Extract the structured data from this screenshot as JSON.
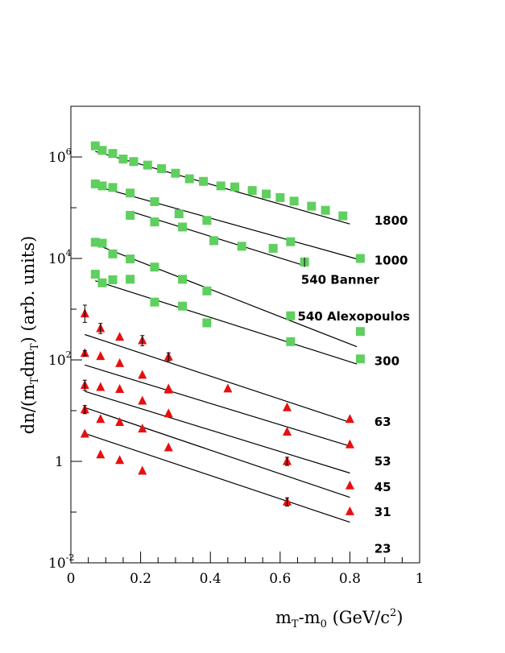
{
  "chart_data": {
    "type": "scatter",
    "title": "",
    "xlabel": {
      "main": "m",
      "sub1": "T",
      "mid": "-m",
      "sub2": "0",
      "unit": " (GeV/c",
      "sup": "2",
      "close": ")"
    },
    "ylabel": {
      "pre": "dn/(m",
      "sub1": "T",
      "mid": "dm",
      "sub2": "T",
      "post": ") (arb. units)"
    },
    "xlim": [
      0,
      1
    ],
    "ylim_log10": [
      -2,
      7
    ],
    "y_scale": "log",
    "x_ticks": [
      0,
      0.2,
      0.4,
      0.6,
      0.8,
      1
    ],
    "x_tick_labels": [
      "0",
      "0.2",
      "0.4",
      "0.6",
      "0.8",
      "1"
    ],
    "y_tick_labels": [
      {
        "log10": -2,
        "base": "10",
        "exp": "-2"
      },
      {
        "log10": 0,
        "base": "1",
        "exp": ""
      },
      {
        "log10": 2,
        "base": "10",
        "exp": "2"
      },
      {
        "log10": 4,
        "base": "10",
        "exp": "4"
      },
      {
        "log10": 6,
        "base": "10",
        "exp": "6"
      }
    ],
    "colors": {
      "square": "#5fcf5f",
      "triangle": "#e51010",
      "line": "#000000"
    },
    "series": [
      {
        "name": "1800",
        "marker": "square",
        "fit": [
          [
            0.07,
            6.11
          ],
          [
            0.8,
            4.68
          ]
        ],
        "points": [
          [
            0.07,
            6.22
          ],
          [
            0.09,
            6.13
          ],
          [
            0.12,
            6.07
          ],
          [
            0.15,
            5.96
          ],
          [
            0.18,
            5.91
          ],
          [
            0.22,
            5.84
          ],
          [
            0.26,
            5.77
          ],
          [
            0.3,
            5.68
          ],
          [
            0.34,
            5.57
          ],
          [
            0.38,
            5.52
          ],
          [
            0.43,
            5.43
          ],
          [
            0.47,
            5.41
          ],
          [
            0.52,
            5.34
          ],
          [
            0.56,
            5.27
          ],
          [
            0.6,
            5.2
          ],
          [
            0.64,
            5.13
          ],
          [
            0.69,
            5.03
          ],
          [
            0.73,
            4.95
          ],
          [
            0.78,
            4.84
          ]
        ]
      },
      {
        "name": "1000",
        "marker": "square",
        "fit": [
          [
            0.07,
            5.43
          ],
          [
            0.82,
            3.99
          ]
        ],
        "points": [
          [
            0.07,
            5.47
          ],
          [
            0.09,
            5.43
          ],
          [
            0.12,
            5.4
          ],
          [
            0.17,
            5.29
          ],
          [
            0.24,
            5.12
          ],
          [
            0.31,
            4.88
          ],
          [
            0.39,
            4.75
          ],
          [
            0.63,
            4.33
          ],
          [
            0.83,
            4.0
          ]
        ]
      },
      {
        "name": "540 Banner",
        "marker": "square",
        "fit": [
          [
            0.17,
            4.93
          ],
          [
            0.66,
            3.88
          ]
        ],
        "points": [
          [
            0.17,
            4.85
          ],
          [
            0.24,
            4.72
          ],
          [
            0.32,
            4.62
          ],
          [
            0.41,
            4.35
          ],
          [
            0.49,
            4.24
          ],
          [
            0.58,
            4.2
          ],
          [
            0.67,
            3.93
          ]
        ]
      },
      {
        "name": "540 Alexopoulos",
        "marker": "square",
        "fit": [
          [
            0.07,
            4.28
          ],
          [
            0.82,
            2.26
          ]
        ],
        "points": [
          [
            0.07,
            4.32
          ],
          [
            0.09,
            4.3
          ],
          [
            0.12,
            4.09
          ],
          [
            0.17,
            3.99
          ],
          [
            0.24,
            3.83
          ],
          [
            0.32,
            3.59
          ],
          [
            0.39,
            3.36
          ],
          [
            0.63,
            2.87
          ],
          [
            0.83,
            2.56
          ]
        ]
      },
      {
        "name": "300",
        "marker": "square",
        "fit": [
          [
            0.07,
            3.56
          ],
          [
            0.82,
            1.92
          ]
        ],
        "points": [
          [
            0.07,
            3.69
          ],
          [
            0.09,
            3.52
          ],
          [
            0.12,
            3.58
          ],
          [
            0.17,
            3.59
          ],
          [
            0.24,
            3.14
          ],
          [
            0.32,
            3.06
          ],
          [
            0.39,
            2.73
          ],
          [
            0.63,
            2.36
          ],
          [
            0.83,
            2.02
          ]
        ]
      },
      {
        "name": "63",
        "marker": "triangle",
        "fit": [
          [
            0.04,
            2.5
          ],
          [
            0.8,
            0.77
          ]
        ],
        "points": [
          [
            0.04,
            2.91
          ],
          [
            0.085,
            2.62
          ],
          [
            0.14,
            2.45
          ],
          [
            0.205,
            2.38
          ],
          [
            0.28,
            2.06
          ],
          [
            0.355,
            null
          ]
        ]
      },
      {
        "name": "53",
        "marker": "triangle",
        "fit": [
          [
            0.04,
            1.9
          ],
          [
            0.8,
            0.3
          ]
        ],
        "points": [
          [
            0.04,
            2.13
          ],
          [
            0.085,
            2.07
          ],
          [
            0.14,
            1.93
          ],
          [
            0.205,
            1.7
          ],
          [
            0.28,
            1.43
          ],
          [
            0.45,
            1.43
          ],
          [
            0.62,
            1.06
          ],
          [
            0.8,
            0.83
          ]
        ]
      },
      {
        "name": "45",
        "marker": "triangle",
        "fit": [
          [
            0.04,
            1.38
          ],
          [
            0.8,
            -0.23
          ]
        ],
        "points": [
          [
            0.04,
            1.5
          ],
          [
            0.085,
            1.46
          ],
          [
            0.14,
            1.42
          ],
          [
            0.205,
            1.19
          ],
          [
            0.28,
            1.41
          ],
          [
            0.62,
            0.58
          ],
          [
            0.8,
            0.33
          ]
        ]
      },
      {
        "name": "31",
        "marker": "triangle",
        "fit": [
          [
            0.04,
            1.06
          ],
          [
            0.8,
            -0.71
          ]
        ],
        "points": [
          [
            0.04,
            1.02
          ],
          [
            0.085,
            0.83
          ],
          [
            0.14,
            0.77
          ],
          [
            0.205,
            0.64
          ],
          [
            0.28,
            0.94
          ],
          [
            0.62,
            0.0
          ],
          [
            0.8,
            -0.48
          ]
        ]
      },
      {
        "name": "23",
        "marker": "triangle",
        "fit": [
          [
            0.04,
            0.55
          ],
          [
            0.8,
            -1.2
          ]
        ],
        "points": [
          [
            0.04,
            0.54
          ],
          [
            0.085,
            0.13
          ],
          [
            0.14,
            0.02
          ],
          [
            0.205,
            -0.19
          ],
          [
            0.28,
            0.27
          ],
          [
            0.62,
            -0.8
          ],
          [
            0.8,
            -0.99
          ]
        ]
      }
    ],
    "extra_triangles": [
      [
        0.04,
        2.91
      ],
      [
        0.085,
        2.62
      ],
      [
        0.14,
        2.45
      ],
      [
        0.205,
        2.38
      ],
      [
        0.28,
        2.06
      ],
      [
        0.04,
        2.13
      ],
      [
        0.085,
        2.07
      ],
      [
        0.14,
        1.93
      ],
      [
        0.205,
        1.7
      ],
      [
        0.28,
        1.43
      ]
    ],
    "labels": [
      {
        "text": "1800",
        "x": 0.87,
        "y": 4.75
      },
      {
        "text": "1000",
        "x": 0.87,
        "y": 3.96
      },
      {
        "text": "540 Banner",
        "x": 0.66,
        "y": 3.58
      },
      {
        "text": "540 Alexopoulos",
        "x": 0.65,
        "y": 2.86
      },
      {
        "text": "300",
        "x": 0.87,
        "y": 1.98
      },
      {
        "text": "63",
        "x": 0.87,
        "y": 0.78
      },
      {
        "text": "53",
        "x": 0.87,
        "y": 0.0
      },
      {
        "text": "45",
        "x": 0.87,
        "y": -0.51
      },
      {
        "text": "31",
        "x": 0.87,
        "y": -1.0
      },
      {
        "text": "23",
        "x": 0.87,
        "y": -1.72
      }
    ]
  }
}
